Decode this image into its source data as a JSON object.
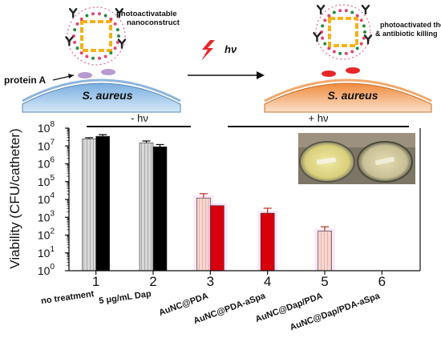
{
  "schematic": {
    "left_label": "photoactivatable nanoconstruct",
    "protein_label": "protein A",
    "bacterium_label": "S. aureus",
    "light_symbol": "hν",
    "right_label": "photoactivated thermal & antibiotic killing",
    "colors": {
      "left_cell": "#a9c9ea",
      "right_cell": "#f3b98f",
      "bolt": "#e8262a",
      "frame": "#f2b21a"
    }
  },
  "conditions": {
    "dark": "- hν",
    "light": "+ hν"
  },
  "inset_photo": {
    "description_icon": "petri-dish-photo-icon"
  },
  "chart_data": {
    "type": "bar",
    "ylabel": "Viability (CFU/catheter)",
    "y_scale": "log",
    "ylim": [
      1,
      100000000
    ],
    "y_ticks": [
      {
        "value": 1,
        "mantissa": "10",
        "exp": "0"
      },
      {
        "value": 10,
        "mantissa": "10",
        "exp": "1"
      },
      {
        "value": 100,
        "mantissa": "10",
        "exp": "2"
      },
      {
        "value": 1000,
        "mantissa": "10",
        "exp": "3"
      },
      {
        "value": 10000,
        "mantissa": "10",
        "exp": "4"
      },
      {
        "value": 100000,
        "mantissa": "10",
        "exp": "5"
      },
      {
        "value": 1000000,
        "mantissa": "10",
        "exp": "6"
      },
      {
        "value": 10000000,
        "mantissa": "10",
        "exp": "7"
      },
      {
        "value": 100000000,
        "mantissa": "10",
        "exp": "8"
      }
    ],
    "categories": [
      "1",
      "2",
      "3",
      "4",
      "5",
      "6"
    ],
    "category_labels": [
      "no treatment",
      "5 μg/mL Dap",
      "AuNC@PDA",
      "AuNC@PDA-aSpa",
      "AuNC@Dap/PDA",
      "AuNC@Dap/PDA-aSpa"
    ],
    "bars": [
      {
        "category": "1",
        "value": 25000000,
        "error": 4000000,
        "style": "hatched-gray"
      },
      {
        "category": "1",
        "value": 35000000,
        "error": 8000000,
        "style": "black"
      },
      {
        "category": "2",
        "value": 15000000,
        "error": 4000000,
        "style": "hatched-gray"
      },
      {
        "category": "2",
        "value": 9000000,
        "error": 3000000,
        "style": "black"
      },
      {
        "category": "3",
        "value": 12000,
        "error": 9000,
        "style": "hatched-pink"
      },
      {
        "category": "3",
        "value": 4500,
        "error": 0,
        "style": "red"
      },
      {
        "category": "4",
        "value": 1700,
        "error": 1500,
        "style": "red"
      },
      {
        "category": "5",
        "value": 170,
        "error": 120,
        "style": "hatched-pink"
      }
    ],
    "colors": {
      "black": "#000000",
      "red": "#d8000c",
      "error": "#c0392b",
      "pink_glow": "#f6b8f0"
    }
  }
}
